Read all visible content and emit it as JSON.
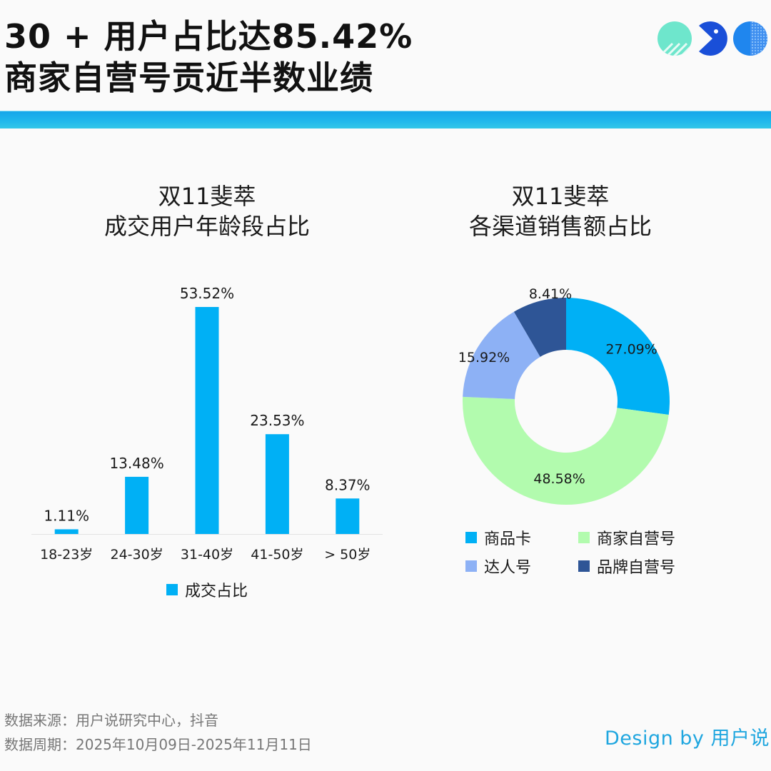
{
  "header": {
    "title_line1": "30 + 用户占比达85.42%",
    "title_line2": "商家自营号贡近半数业绩",
    "band_color": "#1fb2ea",
    "logo_icons": [
      "striped-circle-icon",
      "pacman-icon",
      "dotted-circle-icon"
    ]
  },
  "chart_data": [
    {
      "type": "bar",
      "title_line1": "双11斐萃",
      "title_line2": "成交用户年龄段占比",
      "categories": [
        "18-23岁",
        "24-30岁",
        "31-40岁",
        "41-50岁",
        "> 50岁"
      ],
      "series": [
        {
          "name": "成交占比",
          "values": [
            1.11,
            13.48,
            53.52,
            23.53,
            8.37
          ],
          "labels": [
            "1.11%",
            "13.48%",
            "53.52%",
            "23.53%",
            "8.37%"
          ],
          "color": "#00b0f5"
        }
      ],
      "xlabel": "",
      "ylabel": "",
      "ylim": [
        0,
        60
      ],
      "grid": false,
      "legend": "bottom"
    },
    {
      "type": "pie",
      "variant": "donut",
      "title_line1": "双11斐萃",
      "title_line2": "各渠道销售额占比",
      "slices": [
        {
          "name": "商品卡",
          "value": 27.09,
          "label": "27.09%",
          "color": "#00b0f5"
        },
        {
          "name": "商家自营号",
          "value": 48.58,
          "label": "48.58%",
          "color": "#b2fbae"
        },
        {
          "name": "达人号",
          "value": 15.92,
          "label": "15.92%",
          "color": "#8db1f5"
        },
        {
          "name": "品牌自营号",
          "value": 8.41,
          "label": "8.41%",
          "color": "#2e5596"
        }
      ],
      "start_angle_deg": 0,
      "direction": "clockwise",
      "legend": "bottom"
    }
  ],
  "footer": {
    "source": "数据来源：用户说研究中心，抖音",
    "period": "数据周期：2025年10月09日-2025年11月11日",
    "credit": "Design by 用户说"
  }
}
